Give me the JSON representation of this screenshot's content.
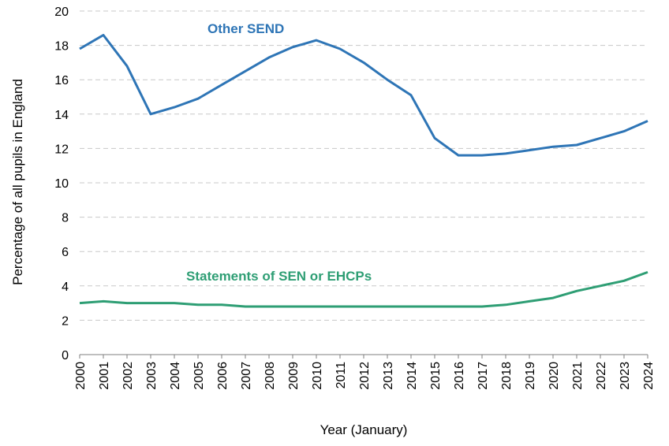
{
  "chart_data": {
    "type": "line",
    "xlabel": "Year (January)",
    "ylabel": "Percentage of all pupils in England",
    "ylim": [
      0,
      20
    ],
    "yticks": [
      0,
      2,
      4,
      6,
      8,
      10,
      12,
      14,
      16,
      18,
      20
    ],
    "x": [
      "2000",
      "2001",
      "2002",
      "2003",
      "2004",
      "2005",
      "2006",
      "2007",
      "2008",
      "2009",
      "2010",
      "2011",
      "2012",
      "2013",
      "2014",
      "2015",
      "2016",
      "2017",
      "2018",
      "2019",
      "2020",
      "2021",
      "2022",
      "2023",
      "2024"
    ],
    "grid": true,
    "series": [
      {
        "name": "Other SEND",
        "color": "#2e75b6",
        "values": [
          17.8,
          18.6,
          16.8,
          14.0,
          14.4,
          14.9,
          15.7,
          16.5,
          17.3,
          17.9,
          18.3,
          17.8,
          17.0,
          16.0,
          15.1,
          12.6,
          11.6,
          11.6,
          11.7,
          11.9,
          12.1,
          12.2,
          12.6,
          13.0,
          13.6
        ]
      },
      {
        "name": "Statements of SEN or EHCPs",
        "color": "#2e9e74",
        "values": [
          3.0,
          3.1,
          3.0,
          3.0,
          3.0,
          2.9,
          2.9,
          2.8,
          2.8,
          2.8,
          2.8,
          2.8,
          2.8,
          2.8,
          2.8,
          2.8,
          2.8,
          2.8,
          2.9,
          3.1,
          3.3,
          3.7,
          4.0,
          4.3,
          4.8
        ]
      }
    ]
  }
}
